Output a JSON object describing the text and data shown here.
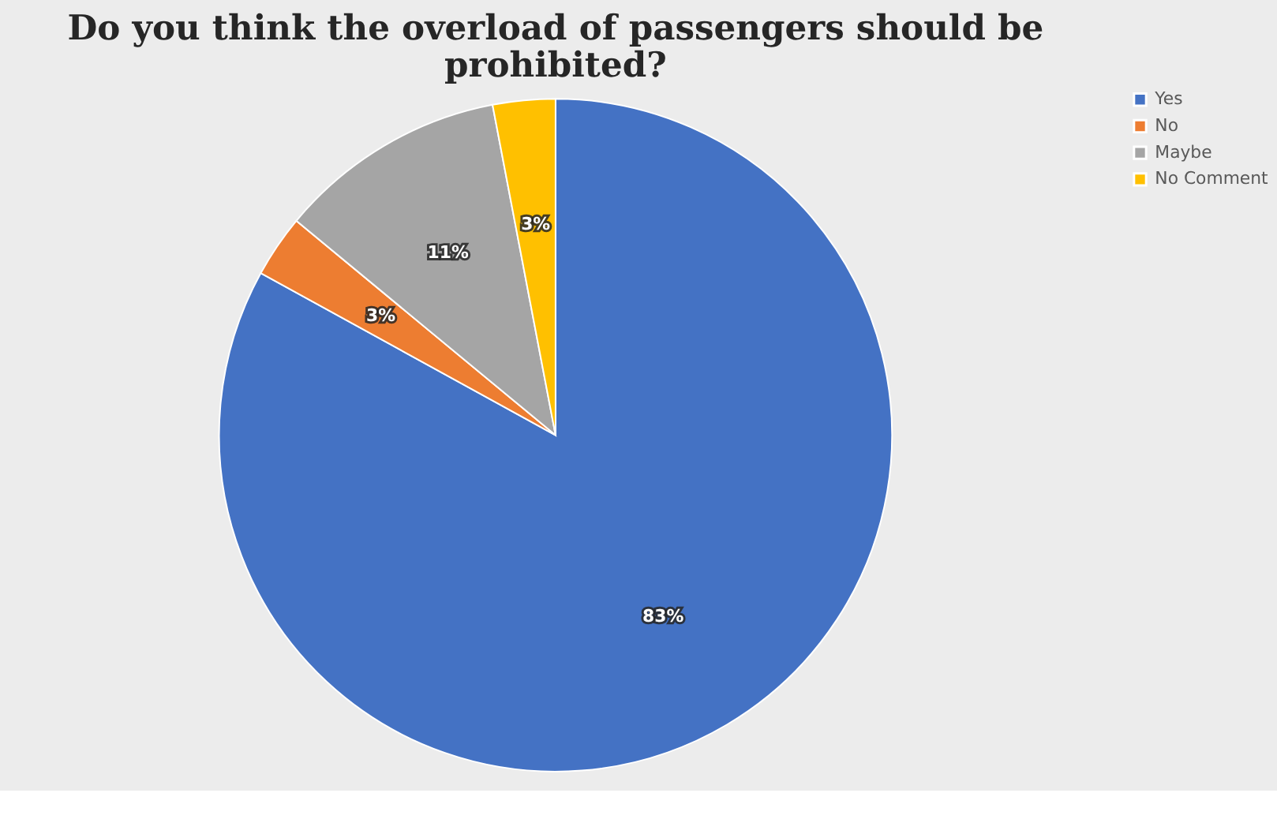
{
  "chart_data": {
    "type": "pie",
    "title": "Do you think the overload of passengers should be prohibited?",
    "categories": [
      "Yes",
      "No",
      "Maybe",
      "No Comment"
    ],
    "values": [
      83,
      3,
      11,
      3
    ],
    "colors": [
      "#4472c4",
      "#ed7d31",
      "#a5a5a5",
      "#ffc000"
    ],
    "value_labels": [
      "83%",
      "3%",
      "11%",
      "3%"
    ],
    "legend": "right"
  }
}
